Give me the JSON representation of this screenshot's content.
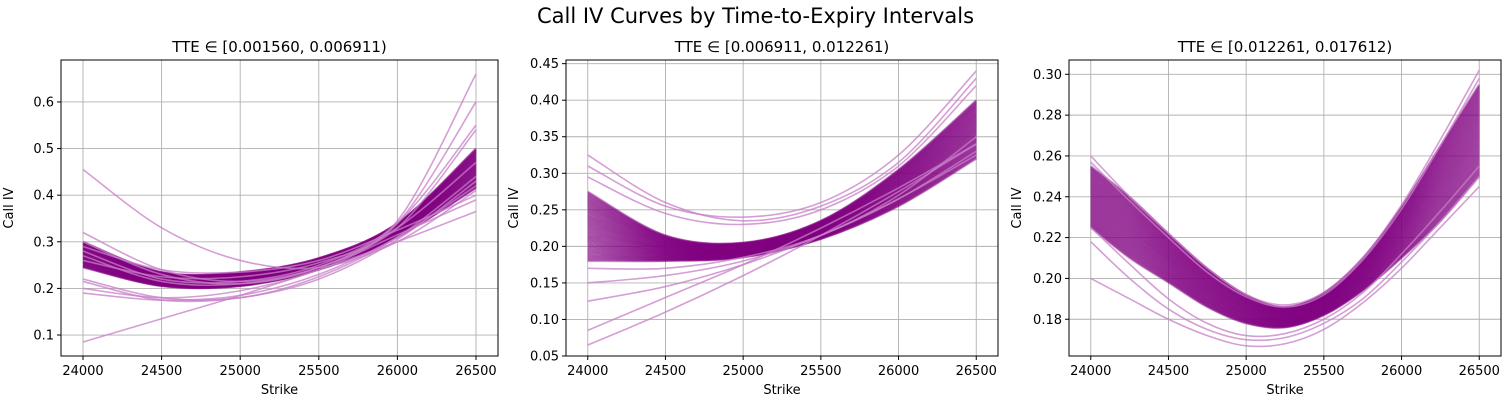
{
  "figure": {
    "suptitle": "Call IV Curves by Time-to-Expiry Intervals"
  },
  "colors": {
    "curve": "#800080",
    "curve_light": "#c77dc7",
    "grid": "#b0b0b0"
  },
  "chart_data": [
    {
      "type": "line",
      "title": "TTE ∈ [0.001560, 0.006911)",
      "xlabel": "Strike",
      "ylabel": "Call IV",
      "xlim": [
        23860,
        26640
      ],
      "ylim": [
        0.055,
        0.69
      ],
      "xticks": [
        24000,
        24500,
        25000,
        25500,
        26000,
        26500
      ],
      "yticks": [
        0.1,
        0.2,
        0.3,
        0.4,
        0.5,
        0.6
      ],
      "ytick_labels": [
        "0.1",
        "0.2",
        "0.3",
        "0.4",
        "0.5",
        "0.6"
      ],
      "grid": true,
      "legend": "none",
      "band": {
        "x": [
          24000,
          24500,
          25000,
          25500,
          26000,
          26500
        ],
        "low": [
          0.245,
          0.205,
          0.205,
          0.24,
          0.31,
          0.415
        ],
        "high": [
          0.3,
          0.235,
          0.235,
          0.265,
          0.34,
          0.5
        ]
      },
      "series": [
        {
          "x": [
            24000,
            24500,
            25000,
            25500,
            26000,
            26500
          ],
          "values": [
            0.455,
            0.33,
            0.26,
            0.245,
            0.3,
            0.41
          ]
        },
        {
          "x": [
            24000,
            24500,
            25000,
            25500,
            26000,
            26500
          ],
          "values": [
            0.085,
            0.135,
            0.185,
            0.24,
            0.3,
            0.365
          ]
        },
        {
          "x": [
            24000,
            24500,
            25000,
            25500,
            26000,
            26500
          ],
          "values": [
            0.32,
            0.24,
            0.215,
            0.245,
            0.33,
            0.47
          ]
        },
        {
          "x": [
            24000,
            24500,
            25000,
            25500,
            26000,
            26500
          ],
          "values": [
            0.3,
            0.23,
            0.21,
            0.245,
            0.345,
            0.66
          ]
        },
        {
          "x": [
            24000,
            24500,
            25000,
            25500,
            26000,
            26500
          ],
          "values": [
            0.27,
            0.215,
            0.21,
            0.245,
            0.34,
            0.6
          ]
        },
        {
          "x": [
            24000,
            24500,
            25000,
            25500,
            26000,
            26500
          ],
          "values": [
            0.28,
            0.22,
            0.215,
            0.25,
            0.34,
            0.55
          ]
        },
        {
          "x": [
            24000,
            24500,
            25000,
            25500,
            26000,
            26500
          ],
          "values": [
            0.26,
            0.225,
            0.225,
            0.255,
            0.33,
            0.54
          ]
        },
        {
          "x": [
            24000,
            24500,
            25000,
            25500,
            26000,
            26500
          ],
          "values": [
            0.29,
            0.24,
            0.235,
            0.26,
            0.325,
            0.4
          ]
        },
        {
          "x": [
            24000,
            24500,
            25000,
            25500,
            26000,
            26500
          ],
          "values": [
            0.22,
            0.18,
            0.18,
            0.225,
            0.31,
            0.44
          ]
        },
        {
          "x": [
            24000,
            24500,
            25000,
            25500,
            26000,
            26500
          ],
          "values": [
            0.215,
            0.175,
            0.18,
            0.22,
            0.305,
            0.43
          ]
        },
        {
          "x": [
            24000,
            24500,
            25000,
            25500,
            26000,
            26500
          ],
          "values": [
            0.2,
            0.18,
            0.195,
            0.24,
            0.315,
            0.39
          ]
        },
        {
          "x": [
            24000,
            24500,
            25000,
            25500,
            26000,
            26500
          ],
          "values": [
            0.19,
            0.175,
            0.185,
            0.23,
            0.31,
            0.42
          ]
        }
      ]
    },
    {
      "type": "line",
      "title": "TTE ∈ [0.006911, 0.012261)",
      "xlabel": "Strike",
      "ylabel": "Call IV",
      "xlim": [
        23860,
        26640
      ],
      "ylim": [
        0.05,
        0.455
      ],
      "xticks": [
        24000,
        24500,
        25000,
        25500,
        26000,
        26500
      ],
      "yticks": [
        0.05,
        0.1,
        0.15,
        0.2,
        0.25,
        0.3,
        0.35,
        0.4,
        0.45
      ],
      "ytick_labels": [
        "0.05",
        "0.10",
        "0.15",
        "0.20",
        "0.25",
        "0.30",
        "0.35",
        "0.40",
        "0.45"
      ],
      "grid": true,
      "legend": "none",
      "band": {
        "x": [
          24000,
          24500,
          25000,
          25500,
          26000,
          26500
        ],
        "low": [
          0.18,
          0.18,
          0.185,
          0.21,
          0.255,
          0.32
        ],
        "high": [
          0.275,
          0.215,
          0.205,
          0.235,
          0.305,
          0.4
        ]
      },
      "series": [
        {
          "x": [
            24000,
            24500,
            25000,
            25500,
            26000,
            26500
          ],
          "values": [
            0.325,
            0.26,
            0.235,
            0.255,
            0.315,
            0.43
          ]
        },
        {
          "x": [
            24000,
            24500,
            25000,
            25500,
            26000,
            26500
          ],
          "values": [
            0.31,
            0.255,
            0.24,
            0.26,
            0.325,
            0.44
          ]
        },
        {
          "x": [
            24000,
            24500,
            25000,
            25500,
            26000,
            26500
          ],
          "values": [
            0.295,
            0.245,
            0.23,
            0.25,
            0.31,
            0.42
          ]
        },
        {
          "x": [
            24000,
            24500,
            25000,
            25500,
            26000,
            26500
          ],
          "values": [
            0.065,
            0.11,
            0.16,
            0.215,
            0.275,
            0.34
          ]
        },
        {
          "x": [
            24000,
            24500,
            25000,
            25500,
            26000,
            26500
          ],
          "values": [
            0.085,
            0.13,
            0.175,
            0.225,
            0.28,
            0.34
          ]
        },
        {
          "x": [
            24000,
            24500,
            25000,
            25500,
            26000,
            26500
          ],
          "values": [
            0.125,
            0.145,
            0.175,
            0.215,
            0.265,
            0.325
          ]
        },
        {
          "x": [
            24000,
            24500,
            25000,
            25500,
            26000,
            26500
          ],
          "values": [
            0.15,
            0.16,
            0.18,
            0.215,
            0.265,
            0.33
          ]
        },
        {
          "x": [
            24000,
            24500,
            25000,
            25500,
            26000,
            26500
          ],
          "values": [
            0.17,
            0.17,
            0.185,
            0.215,
            0.27,
            0.35
          ]
        }
      ]
    },
    {
      "type": "line",
      "title": "TTE ∈ [0.012261, 0.017612)",
      "xlabel": "Strike",
      "ylabel": "Call IV",
      "xlim": [
        23860,
        26640
      ],
      "ylim": [
        0.162,
        0.307
      ],
      "xticks": [
        24000,
        24500,
        25000,
        25500,
        26000,
        26500
      ],
      "yticks": [
        0.18,
        0.2,
        0.22,
        0.24,
        0.26,
        0.28,
        0.3
      ],
      "ytick_labels": [
        "0.18",
        "0.20",
        "0.22",
        "0.24",
        "0.26",
        "0.28",
        "0.30"
      ],
      "grid": true,
      "legend": "none",
      "band": {
        "x": [
          24000,
          24250,
          24500,
          24750,
          25000,
          25250,
          25500,
          25750,
          26000,
          26250,
          26500
        ],
        "low": [
          0.225,
          0.21,
          0.198,
          0.186,
          0.178,
          0.176,
          0.182,
          0.194,
          0.21,
          0.228,
          0.25
        ],
        "high": [
          0.255,
          0.24,
          0.222,
          0.205,
          0.192,
          0.186,
          0.193,
          0.21,
          0.235,
          0.265,
          0.295
        ]
      },
      "series": [
        {
          "x": [
            24000,
            24250,
            24500,
            24750,
            25000,
            25250,
            25500,
            25750,
            26000,
            26250,
            26500
          ],
          "values": [
            0.2,
            0.19,
            0.18,
            0.172,
            0.167,
            0.168,
            0.175,
            0.188,
            0.205,
            0.225,
            0.245
          ]
        },
        {
          "x": [
            24000,
            24250,
            24500,
            24750,
            25000,
            25250,
            25500,
            25750,
            26000,
            26250,
            26500
          ],
          "values": [
            0.218,
            0.2,
            0.185,
            0.175,
            0.17,
            0.171,
            0.178,
            0.19,
            0.208,
            0.228,
            0.25
          ]
        },
        {
          "x": [
            24000,
            24250,
            24500,
            24750,
            25000,
            25250,
            25500,
            25750,
            26000,
            26250,
            26500
          ],
          "values": [
            0.225,
            0.207,
            0.19,
            0.178,
            0.172,
            0.173,
            0.18,
            0.193,
            0.212,
            0.233,
            0.255
          ]
        },
        {
          "x": [
            24000,
            24250,
            24500,
            24750,
            25000,
            25250,
            25500,
            25750,
            26000,
            26250,
            26500
          ],
          "values": [
            0.26,
            0.24,
            0.222,
            0.205,
            0.192,
            0.187,
            0.193,
            0.21,
            0.236,
            0.268,
            0.302
          ]
        },
        {
          "x": [
            24000,
            24250,
            24500,
            24750,
            25000,
            25250,
            25500,
            25750,
            26000,
            26250,
            26500
          ],
          "values": [
            0.257,
            0.238,
            0.22,
            0.203,
            0.191,
            0.186,
            0.192,
            0.209,
            0.234,
            0.265,
            0.298
          ]
        }
      ]
    }
  ]
}
